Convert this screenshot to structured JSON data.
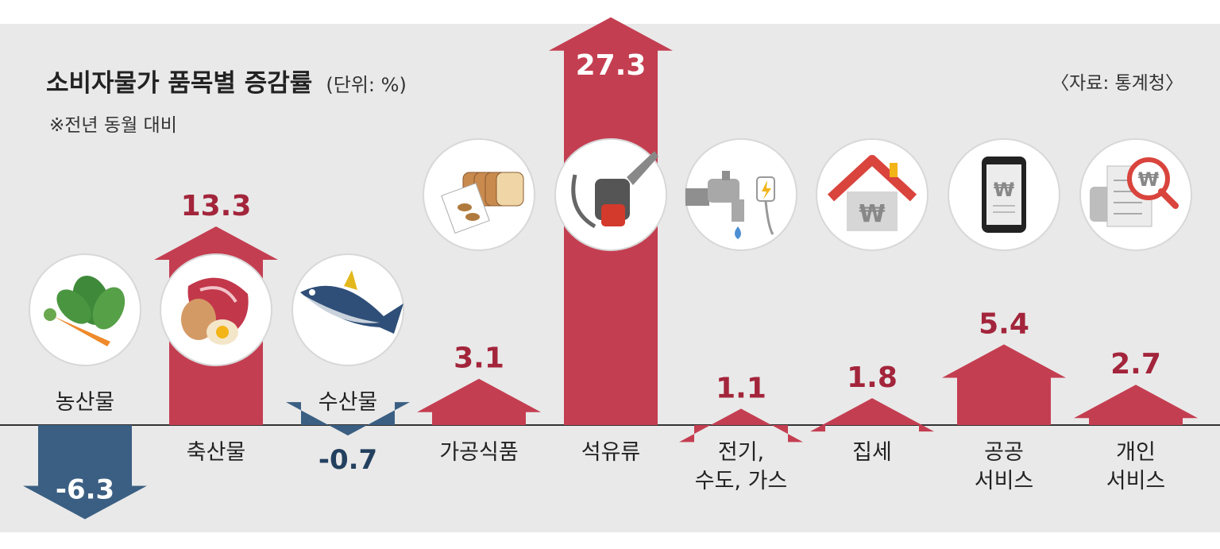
{
  "colors": {
    "positive": "#c43e51",
    "positive_dark": "#a3253b",
    "negative": "#3b5f83",
    "negative_dark": "#24405f",
    "panel": "#e9e9e9"
  },
  "chart_data": {
    "type": "bar",
    "title": "소비자물가 품목별 증감률",
    "unit_label": "(단위: %)",
    "note": "※전년 동월 대비",
    "source": "〈자료: 통계청〉",
    "categories": [
      {
        "lines": [
          "농산물"
        ],
        "icon": "vegetables-icon"
      },
      {
        "lines": [
          "축산물"
        ],
        "icon": "meat-eggs-icon"
      },
      {
        "lines": [
          "수산물"
        ],
        "icon": "fish-icon"
      },
      {
        "lines": [
          "가공식품"
        ],
        "icon": "bread-icon"
      },
      {
        "lines": [
          "석유류"
        ],
        "icon": "fuel-nozzle-icon"
      },
      {
        "lines": [
          "전기,",
          "수도, 가스"
        ],
        "icon": "faucet-plug-icon"
      },
      {
        "lines": [
          "집세"
        ],
        "icon": "house-won-icon"
      },
      {
        "lines": [
          "공공",
          "서비스"
        ],
        "icon": "phone-won-icon"
      },
      {
        "lines": [
          "개인",
          "서비스"
        ],
        "icon": "receipt-won-icon"
      }
    ],
    "values": [
      -6.3,
      13.3,
      -0.7,
      3.1,
      27.3,
      1.1,
      1.8,
      5.4,
      2.7
    ],
    "value_labels": [
      "-6.3",
      "13.3",
      "-0.7",
      "3.1",
      "27.3",
      "1.1",
      "1.8",
      "5.4",
      "2.7"
    ]
  }
}
